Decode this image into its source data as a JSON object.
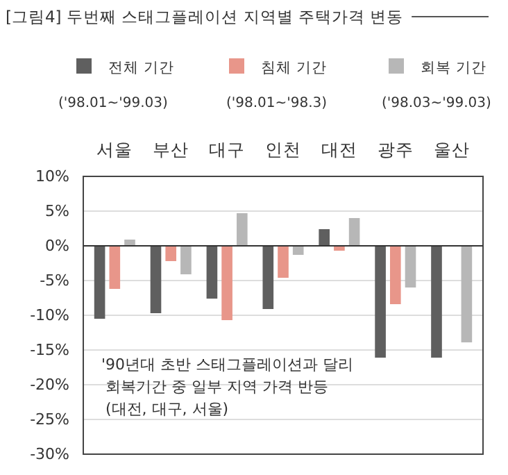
{
  "chart_data": {
    "type": "bar",
    "title": "[그림4] 두번째 스태그플레이션 지역별 주택가격 변동",
    "categories": [
      "서울",
      "부산",
      "대구",
      "인천",
      "대전",
      "광주",
      "울산"
    ],
    "series": [
      {
        "name": "전체 기간",
        "color": "#5f5f5f",
        "values": [
          -10.5,
          -9.7,
          -7.6,
          -9.1,
          2.4,
          -16.1,
          -16.1
        ]
      },
      {
        "name": "침체 기간",
        "color": "#e8968a",
        "values": [
          -6.2,
          -2.2,
          -10.7,
          -4.6,
          -0.7,
          -8.4,
          null
        ]
      },
      {
        "name": "회복 기간",
        "color": "#b7b7b7",
        "values": [
          0.9,
          -4.1,
          4.7,
          -1.3,
          4.0,
          -6.0,
          -13.9
        ]
      }
    ],
    "annotations": [
      "('98.01~'99.03)",
      "('98.01~'98.3)",
      "('98.03~'99.03)",
      "'90년대 초반 스태그플레이션과 달리\n회복기간 중 일부 지역 가격 반등\n(대전, 대구, 서울)"
    ],
    "ylim": [
      -30,
      10
    ],
    "yticks": [
      {
        "value": 10,
        "label": "10%"
      },
      {
        "value": 5,
        "label": "5%"
      },
      {
        "value": 0,
        "label": "0%"
      },
      {
        "value": -5,
        "label": "-5%"
      },
      {
        "value": -10,
        "label": "-10%"
      },
      {
        "value": -15,
        "label": "-15%"
      },
      {
        "value": -20,
        "label": "-20%"
      },
      {
        "value": -25,
        "label": "-25%"
      },
      {
        "value": -30,
        "label": "-30%"
      }
    ],
    "grid": "y",
    "legend": "top"
  }
}
